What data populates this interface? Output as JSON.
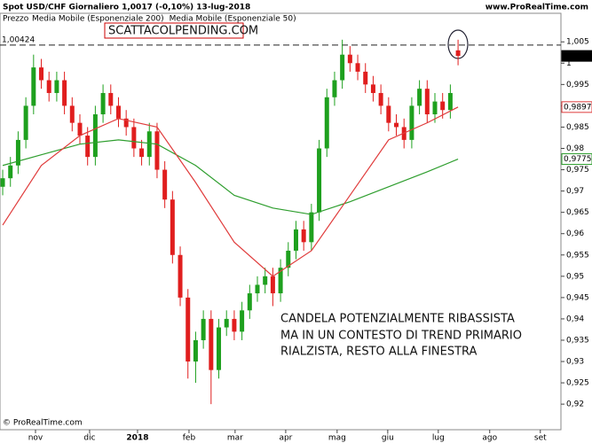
{
  "chart_data": {
    "type": "candlestick",
    "title": "Spot USD/CHF   Giornaliero   1,0017 (-0,10%)   13-lug-2018",
    "source": "www.ProRealTime.com",
    "footer": "© ProRealTime.com",
    "price_name": "Prezzo",
    "annotations": [
      "SCATTACOLPENDING.COM",
      "CANDELA POTENZIALMENTE RIBASSISTA",
      "MA IN UN CONTESTO DI TREND PRIMARIO",
      "RIALZISTA, RESTO ALLA FINESTRA"
    ],
    "up_color": "#1ea01e",
    "down_color": "#e01e1e",
    "open": [
      0.971,
      0.973,
      0.976,
      0.982,
      0.99,
      0.999,
      0.996,
      0.993,
      0.996,
      0.99,
      0.986,
      0.983,
      0.978,
      0.988,
      0.993,
      0.99,
      0.987,
      0.985,
      0.98,
      0.978,
      0.984,
      0.975,
      0.968,
      0.955,
      0.945,
      0.93,
      0.935,
      0.94,
      0.928,
      0.938,
      0.94,
      0.937,
      0.942,
      0.946,
      0.948,
      0.95,
      0.946,
      0.952,
      0.956,
      0.961,
      0.958,
      0.965,
      0.98,
      0.992,
      0.996,
      1.002,
      1.0,
      0.998,
      0.995,
      0.993,
      0.99,
      0.986,
      0.985,
      0.982,
      0.99,
      0.994,
      0.988,
      0.991,
      0.989,
      1.003
    ],
    "high": [
      0.975,
      0.978,
      0.984,
      0.992,
      1.002,
      1.001,
      0.998,
      0.998,
      0.998,
      0.992,
      0.988,
      0.985,
      0.99,
      0.995,
      0.995,
      0.992,
      0.989,
      0.987,
      0.982,
      0.986,
      0.986,
      0.977,
      0.97,
      0.957,
      0.947,
      0.937,
      0.942,
      0.942,
      0.94,
      0.942,
      0.942,
      0.944,
      0.948,
      0.95,
      0.952,
      0.952,
      0.954,
      0.958,
      0.963,
      0.963,
      0.967,
      0.982,
      0.994,
      0.998,
      1.0055,
      1.004,
      1.002,
      1.0,
      0.997,
      0.995,
      0.992,
      0.988,
      0.987,
      0.992,
      0.996,
      0.996,
      0.993,
      0.993,
      0.995,
      1.0055
    ],
    "low": [
      0.969,
      0.971,
      0.974,
      0.98,
      0.988,
      0.994,
      0.991,
      0.991,
      0.988,
      0.984,
      0.981,
      0.976,
      0.976,
      0.986,
      0.988,
      0.985,
      0.983,
      0.978,
      0.976,
      0.976,
      0.973,
      0.966,
      0.953,
      0.943,
      0.926,
      0.925,
      0.933,
      0.92,
      0.926,
      0.936,
      0.935,
      0.935,
      0.94,
      0.944,
      0.946,
      0.943,
      0.944,
      0.95,
      0.954,
      0.956,
      0.956,
      0.963,
      0.978,
      0.99,
      0.994,
      0.998,
      0.996,
      0.993,
      0.991,
      0.988,
      0.984,
      0.983,
      0.98,
      0.98,
      0.988,
      0.986,
      0.986,
      0.987,
      0.987,
      0.9995
    ],
    "close": [
      0.973,
      0.976,
      0.982,
      0.99,
      0.999,
      0.996,
      0.993,
      0.996,
      0.99,
      0.986,
      0.983,
      0.978,
      0.988,
      0.993,
      0.99,
      0.987,
      0.985,
      0.98,
      0.978,
      0.984,
      0.975,
      0.968,
      0.955,
      0.945,
      0.93,
      0.935,
      0.94,
      0.928,
      0.938,
      0.94,
      0.937,
      0.942,
      0.946,
      0.948,
      0.95,
      0.946,
      0.952,
      0.956,
      0.961,
      0.958,
      0.965,
      0.98,
      0.992,
      0.996,
      1.002,
      1.0,
      0.998,
      0.995,
      0.993,
      0.99,
      0.986,
      0.985,
      0.982,
      0.99,
      0.994,
      0.988,
      0.991,
      0.989,
      0.993,
      1.0017
    ],
    "series": [
      {
        "name": "Media Mobile (Esponenziale 200)",
        "color": "#2e9e2e",
        "x": [
          0,
          5,
          10,
          15,
          20,
          25,
          30,
          35,
          40,
          45,
          50,
          55,
          59
        ],
        "values": [
          0.976,
          0.9785,
          0.981,
          0.982,
          0.981,
          0.976,
          0.969,
          0.966,
          0.9645,
          0.9675,
          0.971,
          0.9745,
          0.9775
        ]
      },
      {
        "name": "Media Mobile (Esponenziale 50)",
        "color": "#e03c3c",
        "x": [
          0,
          5,
          10,
          15,
          20,
          25,
          30,
          35,
          40,
          45,
          50,
          55,
          59
        ],
        "values": [
          0.962,
          0.976,
          0.983,
          0.987,
          0.985,
          0.972,
          0.958,
          0.95,
          0.956,
          0.969,
          0.982,
          0.986,
          0.9897
        ]
      }
    ],
    "price_markers": [
      {
        "value": 1.0017,
        "label": "1,0017",
        "color": "#000000"
      },
      {
        "value": 0.9897,
        "label": "0,9897",
        "color": "#e03c3c"
      },
      {
        "value": 0.9775,
        "label": "0,9775",
        "color": "#2e9e2e"
      }
    ],
    "hline": {
      "value": 1.00424,
      "label": "1,00424"
    },
    "xlim": [
      -0.35,
      72.1
    ],
    "xticks": [
      {
        "value": 4.25,
        "label": "nov"
      },
      {
        "value": 11.26,
        "label": "dic"
      },
      {
        "value": 17.47,
        "label": "2018"
      },
      {
        "value": 24.14,
        "label": "feb"
      },
      {
        "value": 30.11,
        "label": "mar"
      },
      {
        "value": 36.67,
        "label": "apr"
      },
      {
        "value": 43.33,
        "label": "mag"
      },
      {
        "value": 49.89,
        "label": "giu"
      },
      {
        "value": 56.44,
        "label": "lug"
      },
      {
        "value": 63.1,
        "label": "ago"
      },
      {
        "value": 69.66,
        "label": "set"
      }
    ],
    "ylim": [
      0.914,
      1.009
    ],
    "yticks": [
      {
        "value": 1.005,
        "label": "1,005"
      },
      1,
      {
        "value": 0.995,
        "label": "0,995"
      },
      {
        "value": 0.99,
        "label": "0,99"
      },
      {
        "value": 0.985,
        "label": "0,985"
      },
      {
        "value": 0.98,
        "label": "0,98"
      },
      {
        "value": 0.975,
        "label": "0,975"
      },
      {
        "value": 0.97,
        "label": "0,97"
      },
      {
        "value": 0.965,
        "label": "0,965"
      },
      {
        "value": 0.96,
        "label": "0,96"
      },
      {
        "value": 0.955,
        "label": "0,955"
      },
      {
        "value": 0.95,
        "label": "0,95"
      },
      {
        "value": 0.945,
        "label": "0,945"
      },
      {
        "value": 0.94,
        "label": "0,94"
      },
      {
        "value": 0.935,
        "label": "0,935"
      },
      {
        "value": 0.93,
        "label": "0,93"
      },
      {
        "value": 0.925,
        "label": "0,925"
      },
      {
        "value": 0.92,
        "label": "0,92"
      }
    ]
  }
}
